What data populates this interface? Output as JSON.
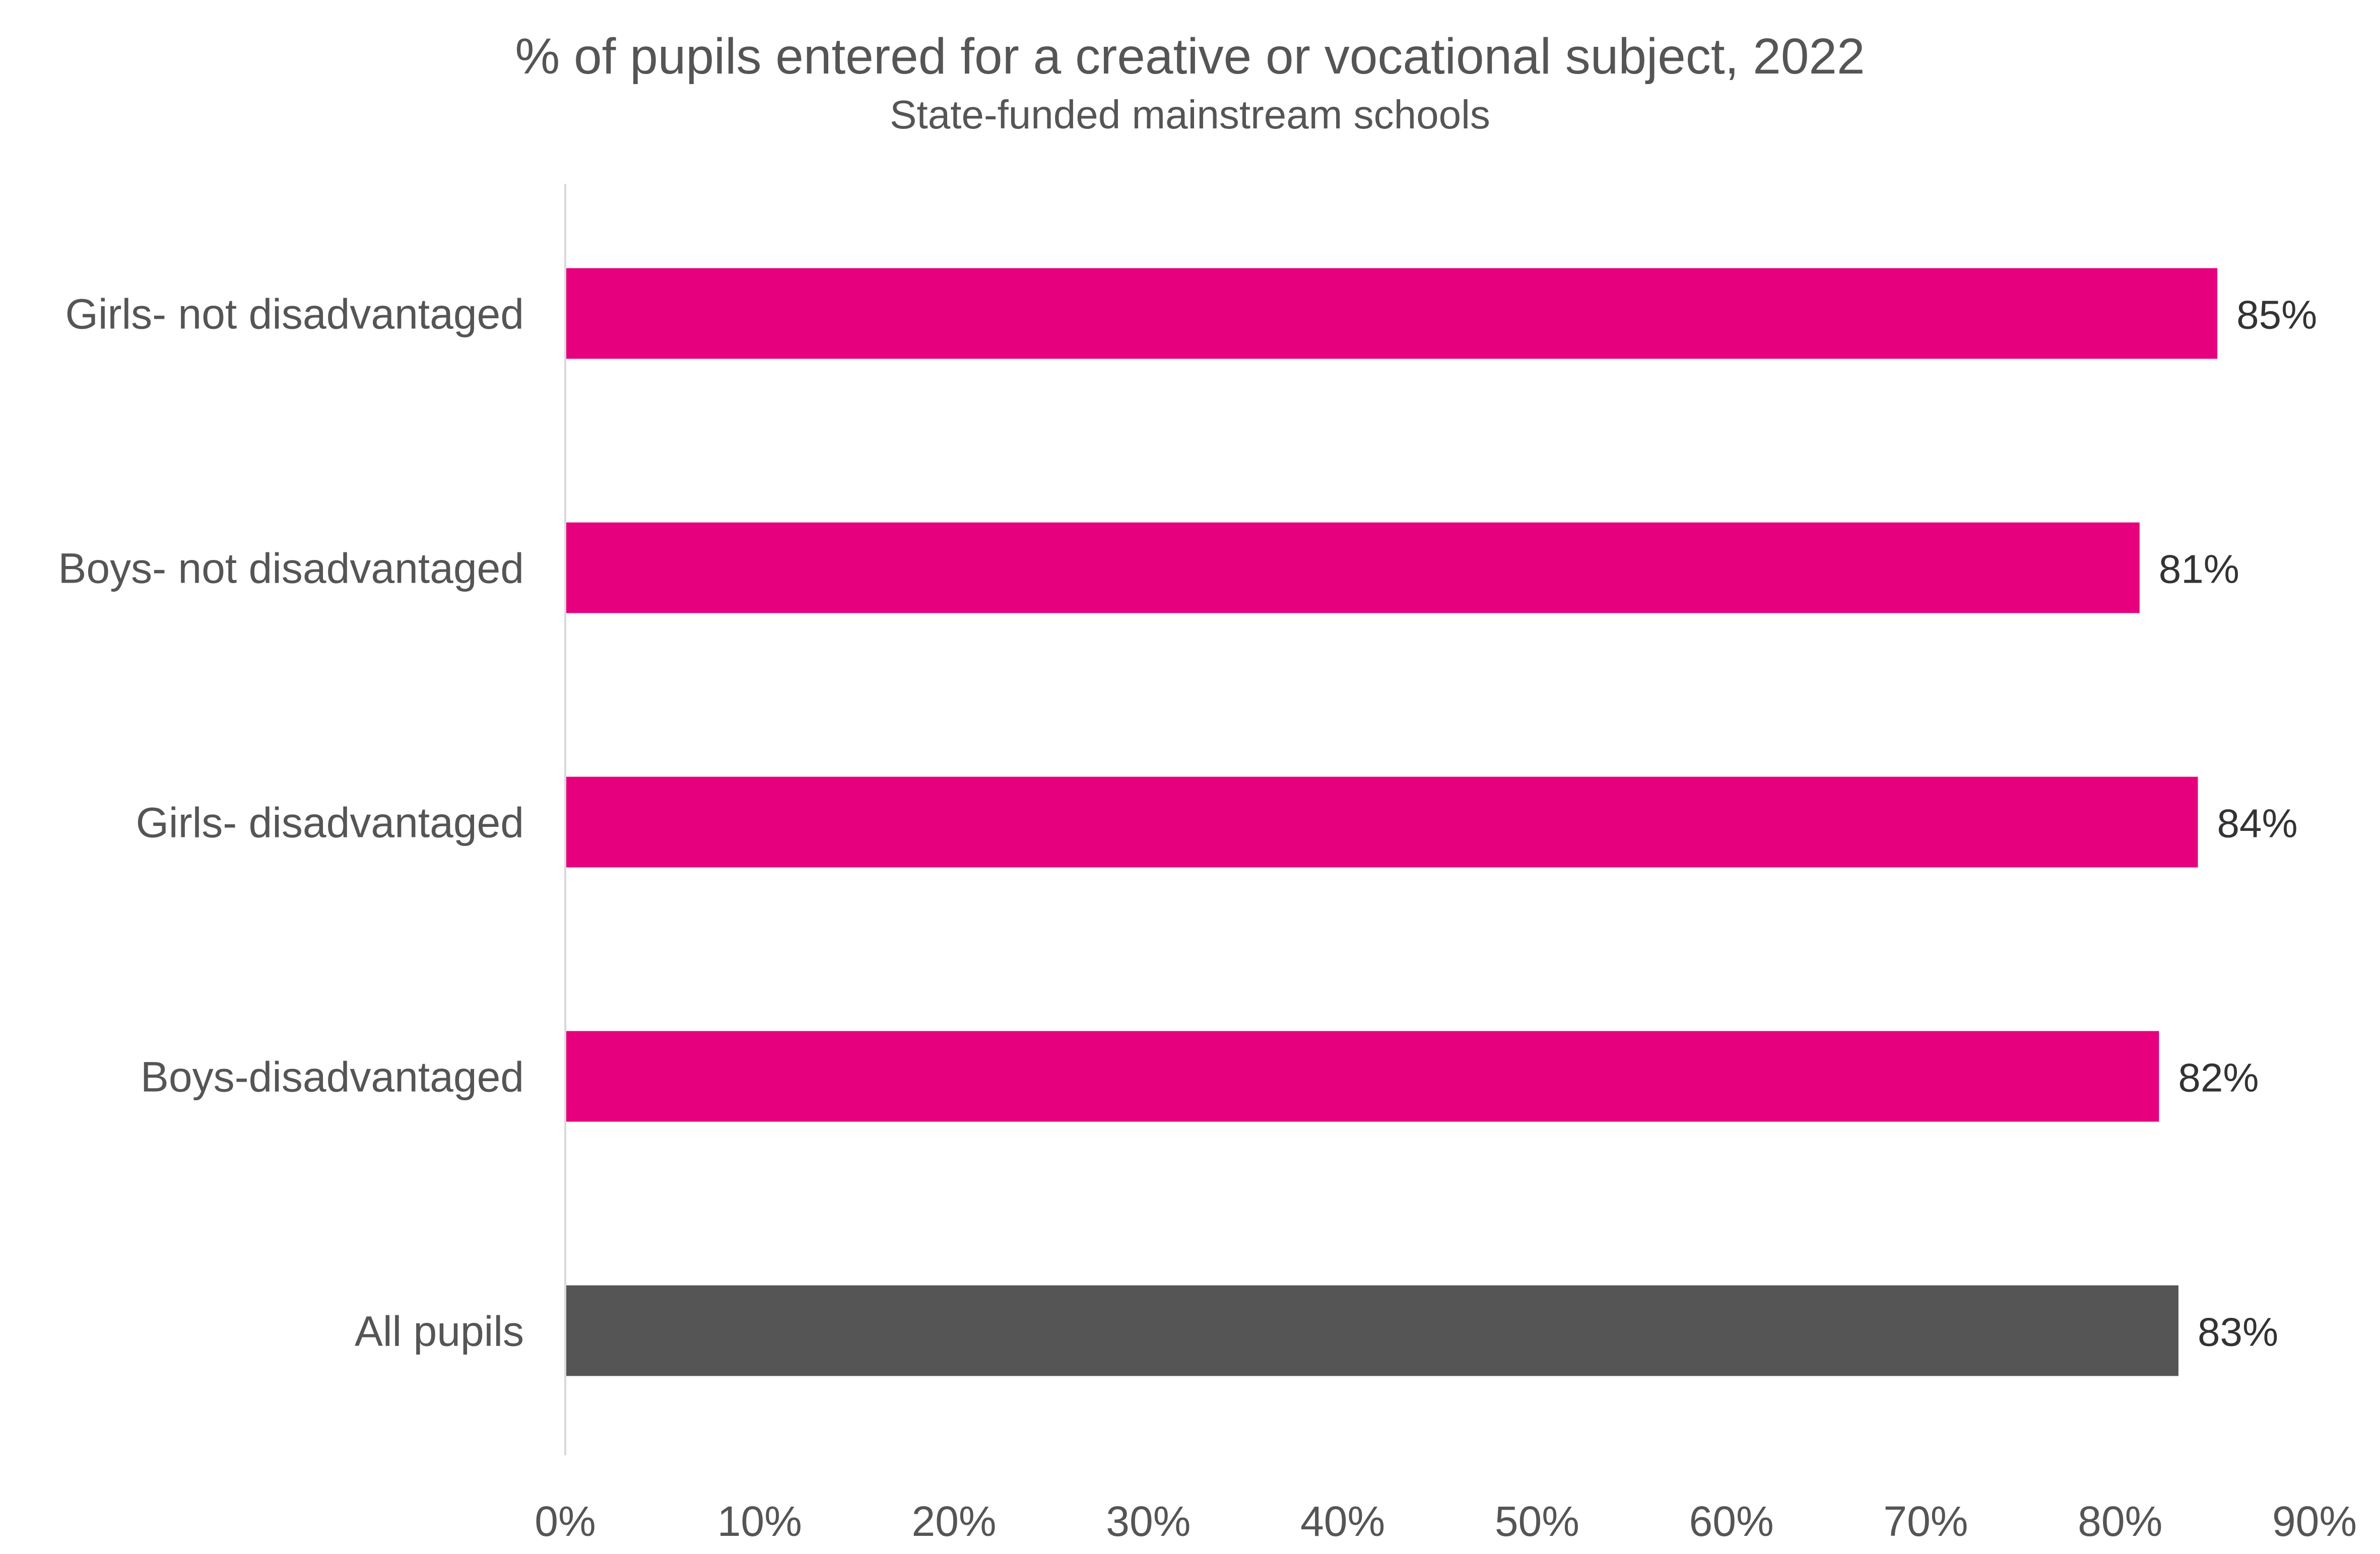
{
  "chart_data": {
    "type": "bar",
    "orientation": "horizontal",
    "title": "% of pupils entered for a creative or vocational subject, 2022",
    "subtitle": "State-funded mainstream schools",
    "categories": [
      "Girls- not disadvantaged",
      "Boys- not disadvantaged",
      "Girls- disadvantaged",
      "Boys-disadvantaged",
      "All pupils"
    ],
    "values": [
      85,
      81,
      84,
      82,
      83
    ],
    "data_labels": [
      "85%",
      "81%",
      "84%",
      "82%",
      "83%"
    ],
    "colors": [
      "#E6007E",
      "#E6007E",
      "#E6007E",
      "#E6007E",
      "#555555"
    ],
    "xlim": [
      0,
      90
    ],
    "ticks": [
      0,
      10,
      20,
      30,
      40,
      50,
      60,
      70,
      80,
      90
    ],
    "tick_labels": [
      "0%",
      "10%",
      "20%",
      "30%",
      "40%",
      "50%",
      "60%",
      "70%",
      "80%",
      "90%"
    ],
    "grid": false,
    "legend": "none"
  }
}
